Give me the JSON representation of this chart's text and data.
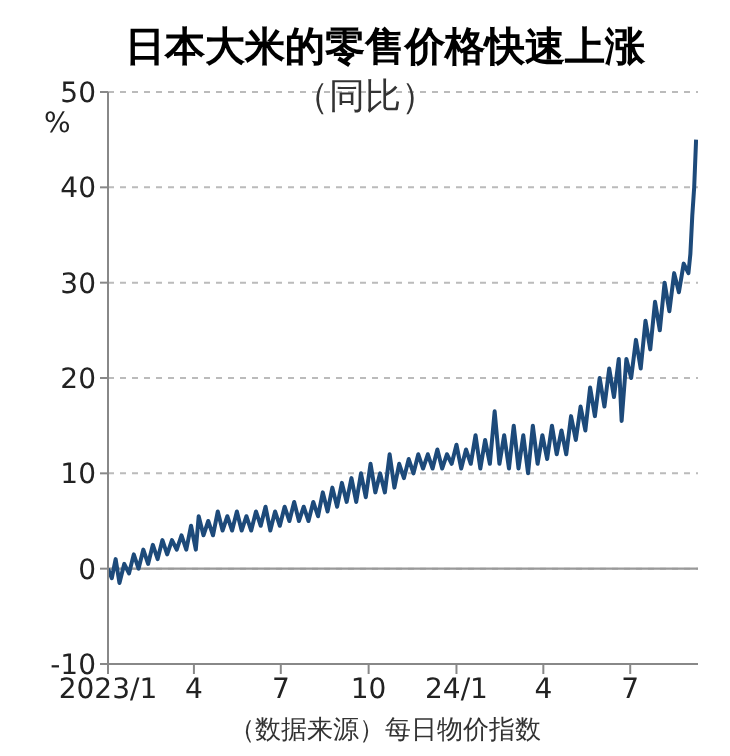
{
  "chart_data": {
    "type": "line",
    "title": "日本大米的零售价格快速上涨",
    "subtitle": "（同比）",
    "ylabel": "%",
    "annotations": [
      "（数据来源）每日物价指数"
    ],
    "x": [
      "2023-01-01",
      "2023-01-05",
      "2023-01-09",
      "2023-01-13",
      "2023-01-18",
      "2023-01-23",
      "2023-01-28",
      "2023-02-02",
      "2023-02-07",
      "2023-02-12",
      "2023-02-17",
      "2023-02-22",
      "2023-02-27",
      "2023-03-04",
      "2023-03-09",
      "2023-03-14",
      "2023-03-19",
      "2023-03-24",
      "2023-03-29",
      "2023-04-03",
      "2023-04-06",
      "2023-04-11",
      "2023-04-16",
      "2023-04-21",
      "2023-04-26",
      "2023-05-01",
      "2023-05-06",
      "2023-05-11",
      "2023-05-16",
      "2023-05-21",
      "2023-05-26",
      "2023-05-31",
      "2023-06-05",
      "2023-06-10",
      "2023-06-15",
      "2023-06-20",
      "2023-06-25",
      "2023-06-30",
      "2023-07-05",
      "2023-07-10",
      "2023-07-15",
      "2023-07-20",
      "2023-07-25",
      "2023-07-30",
      "2023-08-04",
      "2023-08-09",
      "2023-08-14",
      "2023-08-19",
      "2023-08-24",
      "2023-08-29",
      "2023-09-03",
      "2023-09-08",
      "2023-09-13",
      "2023-09-18",
      "2023-09-23",
      "2023-09-28",
      "2023-10-03",
      "2023-10-08",
      "2023-10-13",
      "2023-10-18",
      "2023-10-23",
      "2023-10-28",
      "2023-11-02",
      "2023-11-07",
      "2023-11-12",
      "2023-11-17",
      "2023-11-22",
      "2023-11-27",
      "2023-12-02",
      "2023-12-07",
      "2023-12-12",
      "2023-12-17",
      "2023-12-22",
      "2023-12-27",
      "2024-01-01",
      "2024-01-06",
      "2024-01-11",
      "2024-01-16",
      "2024-01-21",
      "2024-01-26",
      "2024-01-31",
      "2024-02-05",
      "2024-02-10",
      "2024-02-15",
      "2024-02-20",
      "2024-02-25",
      "2024-03-01",
      "2024-03-06",
      "2024-03-11",
      "2024-03-16",
      "2024-03-21",
      "2024-03-26",
      "2024-03-31",
      "2024-04-05",
      "2024-04-10",
      "2024-04-15",
      "2024-04-20",
      "2024-04-25",
      "2024-04-30",
      "2024-05-05",
      "2024-05-10",
      "2024-05-15",
      "2024-05-20",
      "2024-05-25",
      "2024-05-30",
      "2024-06-04",
      "2024-06-09",
      "2024-06-14",
      "2024-06-19",
      "2024-06-22",
      "2024-06-27",
      "2024-07-02",
      "2024-07-07",
      "2024-07-12",
      "2024-07-17",
      "2024-07-22",
      "2024-07-27",
      "2024-08-01",
      "2024-08-06",
      "2024-08-11",
      "2024-08-16",
      "2024-08-21",
      "2024-08-26",
      "2024-08-31",
      "2024-09-02",
      "2024-09-04",
      "2024-09-06",
      "2024-09-08"
    ],
    "series": [
      {
        "color": "#1d4a7a",
        "values": [
          0,
          -1,
          1,
          -1.5,
          0.5,
          -0.5,
          1.5,
          0,
          2,
          0.5,
          2.5,
          1,
          3,
          1.5,
          3,
          2,
          3.5,
          2,
          4.5,
          2,
          5.5,
          3.5,
          5,
          3.5,
          6,
          4,
          5.5,
          4,
          6,
          4,
          5.5,
          4,
          6,
          4.5,
          6.5,
          4,
          6,
          4.5,
          6.5,
          5,
          7,
          5,
          6.5,
          5,
          7,
          5.5,
          8,
          6,
          8.5,
          6.5,
          9,
          7,
          9.5,
          7,
          10,
          7.5,
          11,
          8,
          10,
          8,
          12,
          8.5,
          11,
          9.5,
          11.5,
          10,
          12,
          10.5,
          12,
          10.5,
          12.5,
          10.5,
          12,
          11,
          13,
          10.5,
          12.5,
          11,
          14,
          10.5,
          13.5,
          11,
          16.5,
          11,
          14,
          10.5,
          15,
          10.5,
          14,
          10,
          15,
          11,
          14,
          11.5,
          15,
          12,
          14.5,
          12,
          16,
          13.5,
          17,
          14.5,
          19,
          16,
          20,
          17,
          21,
          18,
          22,
          15.5,
          22,
          20,
          24,
          21,
          26,
          23,
          28,
          25,
          30,
          27,
          31,
          29,
          32,
          31,
          33,
          37,
          40,
          45
        ]
      }
    ],
    "xlim": [
      "2023-01-01",
      "2024-09-10"
    ],
    "xticks": [
      {
        "value": "2023-01-01",
        "label": "2023/1"
      },
      {
        "value": "2023-04-01",
        "label": "4"
      },
      {
        "value": "2023-07-01",
        "label": "7"
      },
      {
        "value": "2023-10-01",
        "label": "10"
      },
      {
        "value": "2024-01-01",
        "label": "24/1"
      },
      {
        "value": "2024-04-01",
        "label": "4"
      },
      {
        "value": "2024-07-01",
        "label": "7"
      }
    ],
    "ylim": [
      -10,
      50
    ],
    "yticks": [
      -10,
      0,
      10,
      20,
      30,
      40,
      50
    ],
    "grid": "y",
    "marker": "none",
    "line_style": "solid",
    "ref_lines": [
      {
        "axis": "y",
        "value": 0,
        "color": "#999999",
        "line_style": "solid"
      }
    ]
  }
}
